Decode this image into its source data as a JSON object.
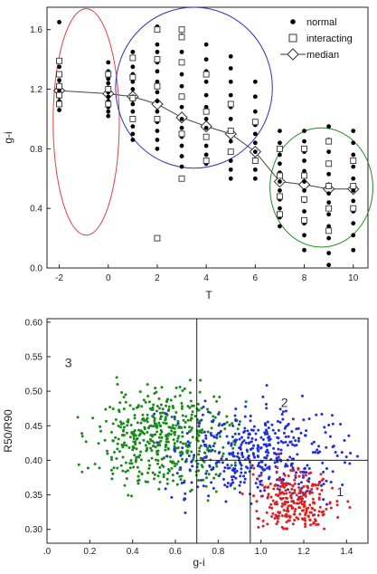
{
  "chart_data": [
    {
      "type": "scatter",
      "xlabel": "T",
      "ylabel": "g-i",
      "xlim": [
        -2.5,
        10.6
      ],
      "ylim": [
        0.0,
        1.75
      ],
      "x_ticks": [
        "-2",
        "0",
        "2",
        "4",
        "6",
        "8",
        "10"
      ],
      "x_tick_values": [
        -2,
        0,
        2,
        4,
        6,
        8,
        10
      ],
      "y_ticks": [
        "0.0",
        "0.4",
        "0.8",
        "1.2",
        "1.6"
      ],
      "y_tick_values": [
        0.0,
        0.4,
        0.8,
        1.2,
        1.6
      ],
      "legend_position": "top-right",
      "series": [
        {
          "name": "normal",
          "marker": "filled-circle",
          "columns": [
            {
              "x": -2,
              "y": [
                1.65,
                1.35,
                1.3,
                1.26,
                1.23,
                1.2,
                1.18,
                1.15,
                1.12,
                1.1,
                1.06
              ]
            },
            {
              "x": 0,
              "y": [
                1.38,
                1.32,
                1.27,
                1.24,
                1.21,
                1.18,
                1.15,
                1.12,
                1.08,
                1.05,
                1.02
              ]
            },
            {
              "x": 1,
              "y": [
                1.45,
                1.35,
                1.3,
                1.25,
                1.2,
                1.15,
                1.1,
                1.05,
                1.0,
                0.95,
                0.9,
                0.86
              ]
            },
            {
              "x": 2,
              "y": [
                1.62,
                1.5,
                1.45,
                1.38,
                1.32,
                1.25,
                1.18,
                1.12,
                1.05,
                0.98,
                0.92,
                0.86,
                0.8
              ]
            },
            {
              "x": 3,
              "y": [
                1.56,
                1.45,
                1.38,
                1.3,
                1.22,
                1.15,
                1.08,
                1.0,
                0.94,
                0.88,
                0.82,
                0.75,
                0.68
              ]
            },
            {
              "x": 4,
              "y": [
                1.5,
                1.4,
                1.32,
                1.25,
                1.16,
                1.08,
                1.0,
                0.94,
                0.88,
                0.82,
                0.76,
                0.7
              ]
            },
            {
              "x": 5,
              "y": [
                1.42,
                1.34,
                1.25,
                1.16,
                1.08,
                1.0,
                0.92,
                0.85,
                0.78,
                0.72,
                0.66,
                0.6
              ]
            },
            {
              "x": 6,
              "y": [
                1.25,
                1.15,
                1.05,
                0.96,
                0.9,
                0.84,
                0.78,
                0.72,
                0.66,
                0.6
              ]
            },
            {
              "x": 7,
              "y": [
                0.92,
                0.84,
                0.76,
                0.7,
                0.64,
                0.58,
                0.52,
                0.46,
                0.4,
                0.34,
                0.28
              ]
            },
            {
              "x": 8,
              "y": [
                0.92,
                0.85,
                0.78,
                0.72,
                0.65,
                0.58,
                0.52,
                0.45,
                0.38,
                0.3,
                0.22,
                0.12
              ]
            },
            {
              "x": 9,
              "y": [
                0.95,
                0.86,
                0.78,
                0.7,
                0.63,
                0.56,
                0.5,
                0.44,
                0.36,
                0.28,
                0.2,
                0.1,
                0.02
              ]
            },
            {
              "x": 10,
              "y": [
                0.92,
                0.84,
                0.76,
                0.68,
                0.6,
                0.52,
                0.45,
                0.38,
                0.3,
                0.22,
                0.12
              ]
            }
          ]
        },
        {
          "name": "interacting",
          "marker": "open-square",
          "columns": [
            {
              "x": -2,
              "y": [
                1.39,
                1.3,
                1.22,
                1.16,
                1.1
              ]
            },
            {
              "x": 0,
              "y": [
                1.3,
                1.2,
                1.1
              ]
            },
            {
              "x": 1,
              "y": [
                1.41,
                1.28,
                1.14,
                1.0
              ]
            },
            {
              "x": 2,
              "y": [
                1.6,
                1.4,
                1.22,
                1.0,
                0.2
              ]
            },
            {
              "x": 3,
              "y": [
                1.6,
                1.55,
                1.38,
                1.15,
                0.9,
                0.6
              ]
            },
            {
              "x": 4,
              "y": [
                1.3,
                1.05,
                0.88,
                0.72
              ]
            },
            {
              "x": 5,
              "y": [
                1.1,
                0.92,
                0.78
              ]
            },
            {
              "x": 6,
              "y": [
                0.98,
                0.72
              ]
            },
            {
              "x": 7,
              "y": [
                0.8,
                0.62,
                0.48,
                0.36
              ]
            },
            {
              "x": 8,
              "y": [
                0.8,
                0.62,
                0.46,
                0.32
              ]
            },
            {
              "x": 9,
              "y": [
                0.85,
                0.7,
                0.55,
                0.4,
                0.25
              ]
            },
            {
              "x": 10,
              "y": [
                0.72,
                0.55,
                0.4
              ]
            }
          ]
        },
        {
          "name": "median",
          "marker": "open-diamond-line",
          "x": [
            -2,
            0,
            1,
            2,
            3,
            4,
            5,
            6,
            7,
            8,
            9,
            10
          ],
          "y": [
            1.19,
            1.17,
            1.15,
            1.1,
            1.01,
            0.95,
            0.9,
            0.78,
            0.58,
            0.56,
            0.53,
            0.53
          ]
        }
      ],
      "ellipses": [
        {
          "color": "#e04040",
          "cx": -0.9,
          "cy": 0.98,
          "rx": 1.35,
          "ry": 0.76
        },
        {
          "color": "#3030c0",
          "cx": 3.5,
          "cy": 1.21,
          "rx": 3.2,
          "ry": 0.54
        },
        {
          "color": "#208a20",
          "cx": 8.7,
          "cy": 0.54,
          "rx": 2.1,
          "ry": 0.4
        }
      ]
    },
    {
      "type": "scatter",
      "xlabel": "g-i",
      "ylabel": "R50/R90",
      "xlim": [
        0.0,
        1.5
      ],
      "ylim": [
        0.28,
        0.605
      ],
      "x_ticks": [
        ".0",
        "0.2",
        "0.4",
        "0.6",
        "0.8",
        "1.0",
        "1.2",
        "1.4"
      ],
      "x_tick_values": [
        0.0,
        0.2,
        0.4,
        0.6,
        0.8,
        1.0,
        1.2,
        1.4
      ],
      "y_ticks": [
        "0.30",
        "0.35",
        "0.40",
        "0.45",
        "0.50",
        "0.55",
        "0.60"
      ],
      "y_tick_values": [
        0.3,
        0.35,
        0.4,
        0.45,
        0.5,
        0.55,
        0.6
      ],
      "divider_lines": [
        {
          "x1": 0.7,
          "y1": 0.28,
          "x2": 0.7,
          "y2": 0.605
        },
        {
          "x1": 0.7,
          "y1": 0.4,
          "x2": 1.5,
          "y2": 0.4
        },
        {
          "x1": 0.95,
          "y1": 0.28,
          "x2": 0.95,
          "y2": 0.4
        }
      ],
      "region_labels": [
        {
          "text": "1",
          "x": 1.37,
          "y": 0.348
        },
        {
          "text": "2",
          "x": 1.11,
          "y": 0.477
        },
        {
          "text": "3",
          "x": 0.1,
          "y": 0.535
        }
      ],
      "point_groups": [
        {
          "color": "#1a8a1a",
          "count": 520,
          "x_range": [
            0.05,
            0.95
          ],
          "y_range": [
            0.3,
            0.585
          ],
          "x_center": 0.55,
          "y_center": 0.43
        },
        {
          "color": "#1f2fe0",
          "count": 430,
          "x_range": [
            0.3,
            1.48
          ],
          "y_range": [
            0.3,
            0.575
          ],
          "x_center": 1.0,
          "y_center": 0.41
        },
        {
          "color": "#e02020",
          "count": 260,
          "x_range": [
            0.9,
            1.45
          ],
          "y_range": [
            0.3,
            0.5
          ],
          "x_center": 1.15,
          "y_center": 0.34
        }
      ]
    }
  ]
}
